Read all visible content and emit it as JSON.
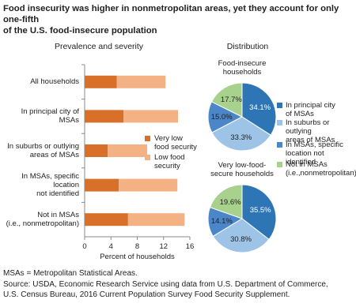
{
  "title": "Food insecurity was higher in nonmetropolitan areas, yet they account for only one-fifth\nof the U.S. food-insecure population",
  "chart_data": [
    {
      "type": "stacked-bar",
      "subtitle": "Prevalence and severity",
      "x_label": "Percent of households",
      "categories": [
        "All households",
        "In principal city of MSAs",
        "In suburbs or outlying\nareas of MSAs",
        "In MSAs, specific location\nnot identified",
        "Not in MSAs\n(i.e., nonmetropolitan)"
      ],
      "series": [
        {
          "name": "Very low\nfood security",
          "color": "#d9702a",
          "values": [
            4.9,
            5.9,
            3.5,
            5.2,
            6.6
          ]
        },
        {
          "name": "Low food\nsecurity",
          "color": "#f4b183",
          "values": [
            7.4,
            8.3,
            6.0,
            8.9,
            8.6
          ]
        }
      ],
      "xlim": [
        0,
        16
      ],
      "xticks": [
        0,
        4,
        8,
        12,
        16
      ]
    },
    {
      "type": "pie",
      "subtitle": "Distribution",
      "title": "Food-insecure\nhouseholds",
      "categories": [
        "In principal city\nof MSAs",
        "In suburbs or outlying\nareas of MSAs",
        "In MSAs, specific\nlocation not identified",
        "Not in MSAs\n(i.e.,nonmetropolitan)"
      ],
      "values": [
        34.1,
        33.3,
        15.0,
        17.7
      ],
      "value_labels": [
        "34.1%",
        "33.3%",
        "15.0%",
        "17.7%"
      ],
      "colors": [
        "#2e75b6",
        "#9dc3e6",
        "#4a86c8",
        "#a9d18e"
      ]
    },
    {
      "type": "pie",
      "title": "Very low-food-\nsecure households",
      "values": [
        35.5,
        30.8,
        14.1,
        19.6
      ],
      "value_labels": [
        "35.5%",
        "30.8%",
        "14.1%",
        "19.6%"
      ],
      "colors": [
        "#2e75b6",
        "#9dc3e6",
        "#4a86c8",
        "#a9d18e"
      ]
    }
  ],
  "footnotes": [
    "MSAs = Metropolitan Statistical Areas.",
    "Source: USDA, Economic Research Service using data from U.S. Department of Commerce,\nU.S. Census Bureau, 2016 Current Population Survey Food Security Supplement."
  ]
}
